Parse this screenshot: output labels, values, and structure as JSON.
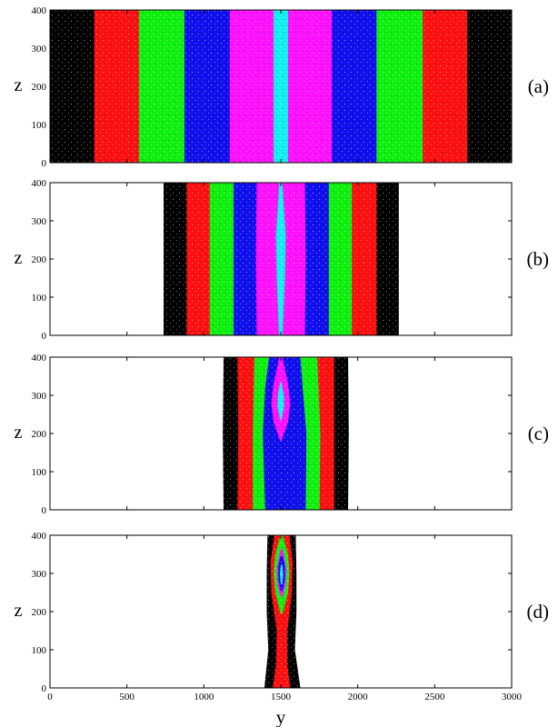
{
  "chart_data": {
    "type": "area",
    "shared_xlabel": "y",
    "x_ticks": [
      0,
      500,
      1000,
      1500,
      2000,
      2500,
      3000
    ],
    "colors": {
      "black": "#000000",
      "red": "#ff1010",
      "green": "#10f010",
      "blue": "#1010ee",
      "magenta": "#ff10ff",
      "cyan": "#10f0f0"
    },
    "panels": [
      {
        "label": "(a)",
        "ylabel": "z",
        "xlim": [
          0,
          3000
        ],
        "ylim": [
          0,
          400
        ],
        "y_ticks": [
          0,
          100,
          200,
          300,
          400
        ],
        "x_tick_labels_shown": false,
        "layers": [
          {
            "color": "black",
            "boundary": [
              [
                0,
                0,
                3000
              ],
              [
                400,
                0,
                3000
              ]
            ]
          },
          {
            "color": "red",
            "boundary": [
              [
                0,
                290,
                2710
              ],
              [
                400,
                290,
                2710
              ]
            ]
          },
          {
            "color": "green",
            "boundary": [
              [
                0,
                580,
                2420
              ],
              [
                400,
                580,
                2420
              ]
            ]
          },
          {
            "color": "blue",
            "boundary": [
              [
                0,
                875,
                2120
              ],
              [
                400,
                875,
                2120
              ]
            ]
          },
          {
            "color": "magenta",
            "boundary": [
              [
                0,
                1170,
                1830
              ],
              [
                400,
                1170,
                1830
              ]
            ]
          },
          {
            "color": "cyan",
            "boundary": [
              [
                0,
                1455,
                1545
              ],
              [
                400,
                1455,
                1545
              ]
            ]
          }
        ]
      },
      {
        "label": "(b)",
        "ylabel": "z",
        "xlim": [
          0,
          3000
        ],
        "ylim": [
          0,
          400
        ],
        "y_ticks": [
          0,
          100,
          200,
          300,
          400
        ],
        "x_tick_labels_shown": false,
        "layers": [
          {
            "color": "black",
            "boundary": [
              [
                0,
                740,
                2265
              ],
              [
                200,
                740,
                2265
              ],
              [
                400,
                740,
                2265
              ]
            ]
          },
          {
            "color": "red",
            "boundary": [
              [
                0,
                890,
                2120
              ],
              [
                200,
                890,
                2120
              ],
              [
                400,
                890,
                2120
              ]
            ]
          },
          {
            "color": "green",
            "boundary": [
              [
                0,
                1040,
                1960
              ],
              [
                200,
                1040,
                1960
              ],
              [
                400,
                1040,
                1960
              ]
            ]
          },
          {
            "color": "blue",
            "boundary": [
              [
                0,
                1195,
                1810
              ],
              [
                200,
                1195,
                1810
              ],
              [
                400,
                1195,
                1810
              ]
            ]
          },
          {
            "color": "magenta",
            "boundary": [
              [
                0,
                1345,
                1655
              ],
              [
                200,
                1340,
                1660
              ],
              [
                400,
                1345,
                1655
              ]
            ]
          },
          {
            "color": "cyan",
            "boundary": [
              [
                0,
                1490,
                1510
              ],
              [
                150,
                1475,
                1525
              ],
              [
                260,
                1470,
                1530
              ],
              [
                400,
                1492,
                1508
              ]
            ]
          }
        ]
      },
      {
        "label": "(c)",
        "ylabel": "z",
        "xlim": [
          0,
          3000
        ],
        "ylim": [
          0,
          400
        ],
        "y_ticks": [
          0,
          100,
          200,
          300,
          400
        ],
        "x_tick_labels_shown": false,
        "layers": [
          {
            "color": "black",
            "boundary": [
              [
                0,
                1130,
                1935
              ],
              [
                200,
                1125,
                1940
              ],
              [
                400,
                1130,
                1935
              ]
            ]
          },
          {
            "color": "red",
            "boundary": [
              [
                0,
                1220,
                1845
              ],
              [
                200,
                1225,
                1845
              ],
              [
                400,
                1220,
                1845
              ]
            ]
          },
          {
            "color": "green",
            "boundary": [
              [
                0,
                1320,
                1750
              ],
              [
                200,
                1320,
                1755
              ],
              [
                400,
                1330,
                1735
              ]
            ]
          },
          {
            "color": "blue",
            "boundary": [
              [
                0,
                1400,
                1660
              ],
              [
                200,
                1385,
                1665
              ],
              [
                320,
                1400,
                1640
              ],
              [
                400,
                1425,
                1625
              ]
            ]
          },
          {
            "color": "magenta",
            "boundary": [
              [
                180,
                1498,
                1502
              ],
              [
                230,
                1455,
                1545
              ],
              [
                280,
                1440,
                1560
              ],
              [
                330,
                1455,
                1545
              ],
              [
                400,
                1492,
                1508
              ]
            ]
          },
          {
            "color": "cyan",
            "boundary": [
              [
                235,
                1498,
                1502
              ],
              [
                270,
                1480,
                1520
              ],
              [
                300,
                1482,
                1518
              ],
              [
                335,
                1498,
                1502
              ]
            ]
          }
        ]
      },
      {
        "label": "(d)",
        "ylabel": "z",
        "xlim": [
          0,
          3000
        ],
        "ylim": [
          0,
          400
        ],
        "y_ticks": [
          0,
          100,
          200,
          300,
          400
        ],
        "x_tick_labels_shown": true,
        "layers": [
          {
            "color": "black",
            "boundary": [
              [
                0,
                1395,
                1625
              ],
              [
                100,
                1420,
                1590
              ],
              [
                200,
                1410,
                1600
              ],
              [
                300,
                1410,
                1600
              ],
              [
                400,
                1415,
                1595
              ]
            ]
          },
          {
            "color": "red",
            "boundary": [
              [
                0,
                1450,
                1560
              ],
              [
                60,
                1470,
                1540
              ],
              [
                150,
                1475,
                1540
              ],
              [
                250,
                1440,
                1570
              ],
              [
                330,
                1435,
                1575
              ],
              [
                400,
                1460,
                1555
              ]
            ]
          },
          {
            "color": "green",
            "boundary": [
              [
                195,
                1500,
                1510
              ],
              [
                250,
                1465,
                1545
              ],
              [
                300,
                1455,
                1555
              ],
              [
                350,
                1465,
                1545
              ],
              [
                400,
                1500,
                1510
              ]
            ]
          },
          {
            "color": "magenta",
            "boundary": [
              [
                240,
                1500,
                1510
              ],
              [
                270,
                1480,
                1530
              ],
              [
                310,
                1475,
                1535
              ],
              [
                345,
                1490,
                1520
              ],
              [
                365,
                1502,
                1508
              ]
            ]
          },
          {
            "color": "blue",
            "boundary": [
              [
                255,
                1500,
                1510
              ],
              [
                285,
                1485,
                1525
              ],
              [
                320,
                1485,
                1525
              ],
              [
                345,
                1500,
                1510
              ]
            ]
          },
          {
            "color": "cyan",
            "boundary": [
              [
                272,
                1502,
                1508
              ],
              [
                300,
                1496,
                1514
              ],
              [
                322,
                1502,
                1508
              ]
            ]
          }
        ]
      }
    ]
  }
}
